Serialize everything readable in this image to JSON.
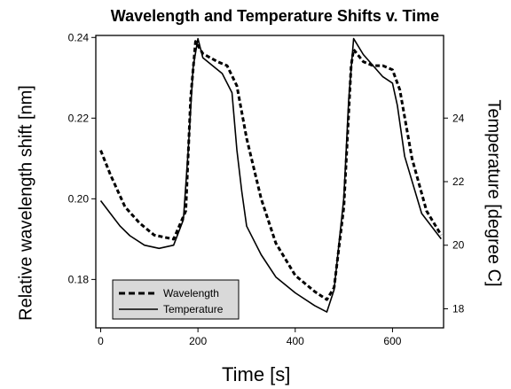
{
  "chart_data": {
    "type": "line",
    "title": "Wavelength and Temperature Shifts v. Time",
    "xlabel": "Time [s]",
    "ylabel": "Relative wavelength shift [nm]",
    "y2label": "Temperature [degree C]",
    "xlim": [
      -10,
      705
    ],
    "ylim": [
      0.168,
      0.2405
    ],
    "y2lim": [
      17.4,
      26.6
    ],
    "x_ticks": [
      0,
      200,
      400,
      600
    ],
    "y_ticks": [
      0.18,
      0.2,
      0.22,
      0.24
    ],
    "y2_ticks": [
      18,
      20,
      22,
      24
    ],
    "legend_position": "bottom-left",
    "grid": false,
    "series": [
      {
        "name": "Wavelength",
        "axis": "left",
        "style": "dashed",
        "x": [
          0,
          20,
          50,
          80,
          110,
          150,
          175,
          185,
          195,
          210,
          240,
          260,
          280,
          300,
          330,
          360,
          400,
          440,
          465,
          480,
          500,
          515,
          520,
          540,
          560,
          580,
          600,
          615,
          640,
          670,
          700
        ],
        "y": [
          0.212,
          0.206,
          0.198,
          0.194,
          0.191,
          0.19,
          0.197,
          0.225,
          0.239,
          0.236,
          0.234,
          0.233,
          0.228,
          0.215,
          0.2,
          0.189,
          0.181,
          0.177,
          0.175,
          0.178,
          0.198,
          0.233,
          0.237,
          0.234,
          0.233,
          0.233,
          0.232,
          0.227,
          0.21,
          0.197,
          0.191
        ]
      },
      {
        "name": "Temperature",
        "axis": "right",
        "style": "solid",
        "x": [
          0,
          20,
          40,
          60,
          90,
          120,
          150,
          170,
          180,
          190,
          200,
          210,
          250,
          270,
          280,
          290,
          300,
          330,
          360,
          400,
          440,
          465,
          480,
          500,
          510,
          520,
          540,
          580,
          600,
          610,
          625,
          660,
          700
        ],
        "y": [
          21.4,
          21.0,
          20.6,
          20.3,
          20.0,
          19.9,
          20.0,
          20.8,
          23.0,
          25.6,
          26.5,
          25.9,
          25.4,
          24.8,
          23.0,
          21.7,
          20.6,
          19.7,
          19.0,
          18.5,
          18.1,
          17.9,
          18.6,
          21.5,
          24.6,
          26.5,
          26.0,
          25.3,
          25.1,
          24.4,
          22.8,
          21.0,
          20.2
        ]
      }
    ],
    "legend": [
      {
        "label": "Wavelength",
        "style": "dashed"
      },
      {
        "label": "Temperature",
        "style": "solid"
      }
    ]
  }
}
